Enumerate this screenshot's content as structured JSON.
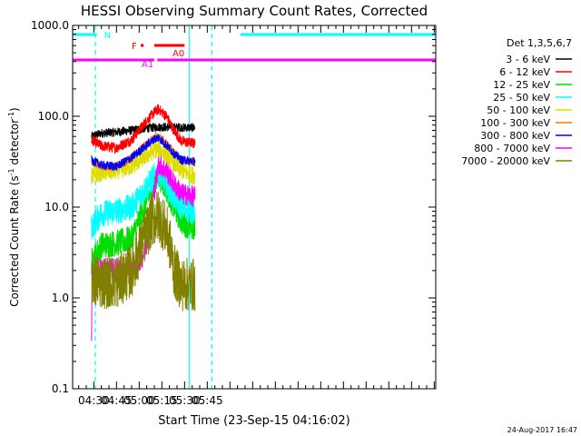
{
  "chart_data": {
    "type": "line",
    "title": "HESSI Observing Summary Count Rates, Corrected",
    "xlabel": "Start Time (23-Sep-15 04:16:02)",
    "ylabel_main": "Corrected Count Rate (s",
    "ylabel_sup1": "-1",
    "ylabel_mid": " detector",
    "ylabel_sup2": "-1",
    "ylabel_end": ")",
    "footer_date": "24-Aug-2017 16:47",
    "y_scale": "log",
    "ylim": [
      0.1,
      1000
    ],
    "xlim_minutes": [
      256,
      496
    ],
    "x_ticks": [
      {
        "m": 270,
        "label": "04:30"
      },
      {
        "m": 285,
        "label": "04:45"
      },
      {
        "m": 300,
        "label": "05:00"
      },
      {
        "m": 315,
        "label": "05:15"
      },
      {
        "m": 330,
        "label": "05:30"
      },
      {
        "m": 345,
        "label": "05:45"
      }
    ],
    "y_ticks": [
      {
        "v": 0.1,
        "label": "0.1"
      },
      {
        "v": 1,
        "label": "1.0"
      },
      {
        "v": 10,
        "label": "10.0"
      },
      {
        "v": 100,
        "label": "100.0"
      },
      {
        "v": 1000,
        "label": "1000.0"
      }
    ],
    "legend_header": "Det 1,3,5,6,7",
    "legend_placement": "right",
    "series": [
      {
        "name": "3 - 6 keV",
        "color": "#000000",
        "noise": 0.05,
        "points": [
          [
            268.5,
            60
          ],
          [
            275,
            65
          ],
          [
            285,
            67
          ],
          [
            295,
            70
          ],
          [
            305,
            74
          ],
          [
            312,
            76
          ],
          [
            320,
            76
          ],
          [
            330,
            75
          ],
          [
            337,
            75
          ]
        ]
      },
      {
        "name": "6 - 12 keV",
        "color": "#ff0000",
        "noise": 0.06,
        "points": [
          [
            268.5,
            55
          ],
          [
            275,
            47
          ],
          [
            285,
            45
          ],
          [
            295,
            55
          ],
          [
            305,
            90
          ],
          [
            310,
            110
          ],
          [
            313,
            120
          ],
          [
            318,
            100
          ],
          [
            323,
            70
          ],
          [
            328,
            53
          ],
          [
            337,
            50
          ]
        ]
      },
      {
        "name": "12 - 25 keV",
        "color": "#00dd00",
        "noise": 0.15,
        "points": [
          [
            268.5,
            2.5
          ],
          [
            275,
            3.8
          ],
          [
            285,
            4
          ],
          [
            295,
            4.5
          ],
          [
            305,
            12
          ],
          [
            310,
            18
          ],
          [
            313,
            22
          ],
          [
            318,
            16
          ],
          [
            323,
            10
          ],
          [
            328,
            7
          ],
          [
            337,
            5.5
          ]
        ]
      },
      {
        "name": "25 - 50 keV",
        "color": "#00ffff",
        "noise": 0.15,
        "points": [
          [
            268.5,
            6
          ],
          [
            275,
            8.5
          ],
          [
            285,
            9
          ],
          [
            295,
            10
          ],
          [
            305,
            17
          ],
          [
            310,
            22
          ],
          [
            313,
            24
          ],
          [
            318,
            18
          ],
          [
            323,
            13
          ],
          [
            328,
            10
          ],
          [
            337,
            9
          ]
        ]
      },
      {
        "name": "50 - 100 keV",
        "color": "#dddd00",
        "noise": 0.1,
        "points": [
          [
            268.5,
            22
          ],
          [
            275,
            24
          ],
          [
            285,
            25
          ],
          [
            295,
            28
          ],
          [
            305,
            37
          ],
          [
            310,
            42
          ],
          [
            313,
            44
          ],
          [
            318,
            38
          ],
          [
            323,
            30
          ],
          [
            328,
            25
          ],
          [
            337,
            22
          ]
        ]
      },
      {
        "name": "100 - 300 keV",
        "color": "#ff7700",
        "noise": 0.05,
        "points": [
          [
            268.5,
            32
          ],
          [
            275,
            28
          ],
          [
            285,
            28
          ],
          [
            295,
            35
          ],
          [
            305,
            50
          ],
          [
            310,
            58
          ],
          [
            313,
            60
          ],
          [
            318,
            50
          ],
          [
            323,
            40
          ],
          [
            328,
            33
          ],
          [
            337,
            31
          ]
        ]
      },
      {
        "name": "300 - 800 keV",
        "color": "#0000ff",
        "noise": 0.05,
        "points": [
          [
            268.5,
            33
          ],
          [
            275,
            29
          ],
          [
            285,
            28
          ],
          [
            295,
            35
          ],
          [
            305,
            48
          ],
          [
            310,
            56
          ],
          [
            313,
            58
          ],
          [
            318,
            48
          ],
          [
            323,
            39
          ],
          [
            328,
            33
          ],
          [
            337,
            32
          ]
        ]
      },
      {
        "name": "800 - 7000 keV",
        "color": "#ff00ff",
        "noise": 0.12,
        "points": [
          [
            268.5,
            0.3
          ],
          [
            269,
            1.9
          ],
          [
            275,
            2.1
          ],
          [
            290,
            2.1
          ],
          [
            298,
            2.3
          ],
          [
            303,
            3
          ],
          [
            306,
            5
          ],
          [
            309,
            12
          ],
          [
            313,
            30
          ],
          [
            318,
            25
          ],
          [
            323,
            18
          ],
          [
            328,
            14
          ],
          [
            337,
            13
          ]
        ]
      },
      {
        "name": "7000 - 20000 keV",
        "color": "#808000",
        "noise": 0.3,
        "points": [
          [
            268.5,
            1.6
          ],
          [
            275,
            1.5
          ],
          [
            285,
            1.5
          ],
          [
            295,
            2
          ],
          [
            302,
            4
          ],
          [
            308,
            7
          ],
          [
            313,
            8
          ],
          [
            318,
            5.5
          ],
          [
            321,
            3.5
          ],
          [
            323,
            2
          ],
          [
            328,
            1.4
          ],
          [
            337,
            1.4
          ]
        ]
      }
    ],
    "flags": [
      {
        "label": "N",
        "color": "#00ffff",
        "segments": [
          [
            256,
            272
          ],
          [
            367,
            496
          ]
        ],
        "y": 0.975
      },
      {
        "label": "F",
        "color": "#ff0000",
        "segments": [
          [
            301,
            303
          ]
        ],
        "y": 0.945
      },
      {
        "label": "A0",
        "color": "#ff0000",
        "segments": [
          [
            310,
            330
          ]
        ],
        "y": 0.945
      },
      {
        "label": "A1",
        "color": "#ff00ff",
        "segments": [
          [
            256,
            310
          ],
          [
            312,
            496
          ]
        ],
        "y": 0.905
      }
    ],
    "vertical_lines": [
      {
        "m": 256,
        "color": "#00ffff",
        "style": "solid"
      },
      {
        "m": 271,
        "color": "#00ffff",
        "style": "dashed"
      },
      {
        "m": 333,
        "color": "#00ffff",
        "style": "solid"
      },
      {
        "m": 348,
        "color": "#00ffff",
        "style": "dashed"
      }
    ]
  }
}
